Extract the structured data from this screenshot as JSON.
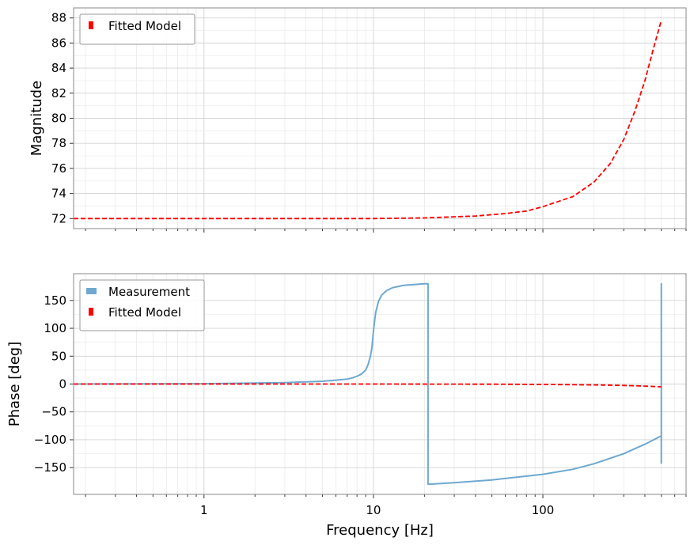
{
  "chart_data": [
    {
      "type": "line",
      "ylabel": "Magnitude",
      "x_scale": "log",
      "xlim": [
        0.17,
        700
      ],
      "ylim": [
        71.2,
        88.8
      ],
      "yticks": [
        72,
        74,
        76,
        78,
        80,
        82,
        84,
        86,
        88
      ],
      "xticks": [
        1,
        10,
        100
      ],
      "xtick_labels_shown": false,
      "grid": true,
      "legend_position": "upper-left",
      "legend": [
        "Fitted Model"
      ],
      "series": [
        {
          "name": "Fitted Model",
          "color": "#ff0000",
          "style": "dashed",
          "x": [
            0.17,
            0.5,
            1,
            2,
            5,
            10,
            20,
            40,
            60,
            80,
            100,
            150,
            200,
            250,
            300,
            350,
            400,
            450,
            500
          ],
          "y": [
            72.0,
            72.0,
            72.0,
            72.0,
            72.0,
            72.0,
            72.05,
            72.2,
            72.4,
            72.6,
            72.95,
            73.75,
            74.9,
            76.4,
            78.3,
            80.6,
            83.0,
            85.6,
            87.8
          ]
        }
      ]
    },
    {
      "type": "line",
      "xlabel": "Frequency [Hz]",
      "ylabel": "Phase [deg]",
      "x_scale": "log",
      "xlim": [
        0.17,
        700
      ],
      "ylim": [
        -198,
        198
      ],
      "yticks": [
        -150,
        -100,
        -50,
        0,
        50,
        100,
        150
      ],
      "xticks": [
        1,
        10,
        100
      ],
      "xtick_labels": [
        "1",
        "10",
        "100"
      ],
      "grid": true,
      "legend_position": "upper-left",
      "legend": [
        "Measurement",
        "Fitted Model"
      ],
      "series": [
        {
          "name": "Measurement",
          "color": "#6fa8d0",
          "style": "solid",
          "x": [
            0.17,
            1,
            3,
            5,
            6,
            7,
            7.5,
            8,
            8.5,
            9,
            9.3,
            9.6,
            9.8,
            10,
            10.3,
            10.7,
            11.2,
            12,
            13,
            15,
            20,
            21,
            21,
            30,
            50,
            100,
            150,
            200,
            300,
            400,
            500,
            500,
            500
          ],
          "y": [
            0,
            0.5,
            2.5,
            5,
            7,
            9,
            11,
            14,
            18,
            25,
            35,
            50,
            65,
            95,
            128,
            148,
            160,
            168,
            173,
            177,
            180,
            180,
            -180,
            -177,
            -172,
            -162,
            -153,
            -143,
            -125,
            -108,
            -93,
            180,
            -143
          ]
        },
        {
          "name": "Fitted Model",
          "color": "#ff0000",
          "style": "dashed",
          "x": [
            0.17,
            1,
            10,
            50,
            100,
            200,
            300,
            400,
            500
          ],
          "y": [
            0,
            0,
            0,
            -0.3,
            -0.7,
            -1.5,
            -2.5,
            -3.7,
            -5
          ]
        }
      ]
    }
  ]
}
